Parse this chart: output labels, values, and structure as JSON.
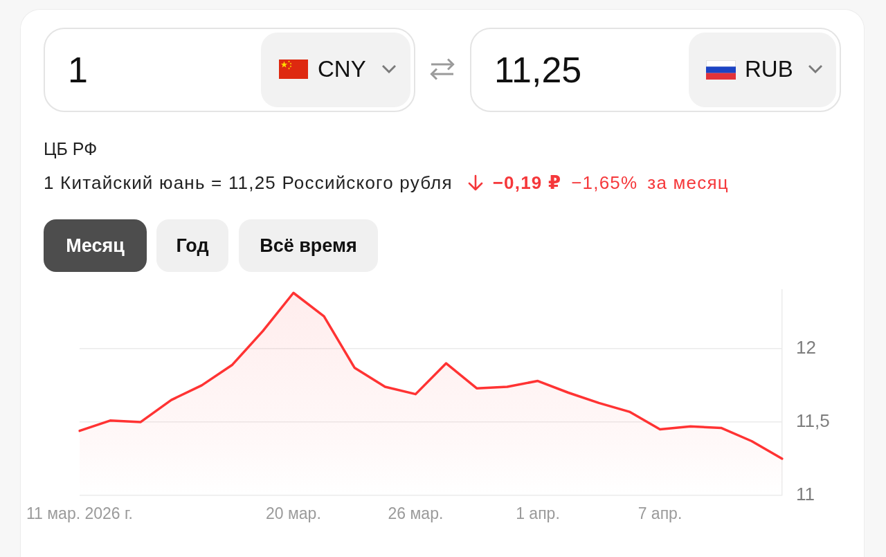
{
  "chart_data": {
    "type": "area",
    "title": "1 Китайский юань = 11,25 Российского рубля",
    "annotations": [
      "ЦБ РФ",
      "1",
      "CNY",
      "11,25",
      "RUB",
      "−0,19 ₽",
      "−1,65%",
      "за месяц",
      "Месяц",
      "Год",
      "Всё время"
    ],
    "categories": [
      "11 мар. 2026 г.",
      null,
      null,
      null,
      null,
      null,
      null,
      "20 мар.",
      null,
      null,
      null,
      "26 мар.",
      null,
      null,
      null,
      "1 апр.",
      null,
      null,
      null,
      "7 апр.",
      null,
      null,
      null,
      null
    ],
    "values": [
      11.44,
      11.51,
      11.5,
      11.65,
      11.75,
      11.89,
      12.12,
      12.38,
      12.22,
      11.87,
      11.74,
      11.69,
      11.9,
      11.73,
      11.74,
      11.78,
      11.7,
      11.63,
      11.57,
      11.45,
      11.47,
      11.46,
      11.37,
      11.25
    ],
    "color": "#ff3333",
    "ylim": [
      11,
      12.4
    ],
    "yticks": [
      11,
      {
        "value": 11.5,
        "label": "11,5"
      },
      12
    ],
    "grid": "y",
    "marker": "none"
  }
}
